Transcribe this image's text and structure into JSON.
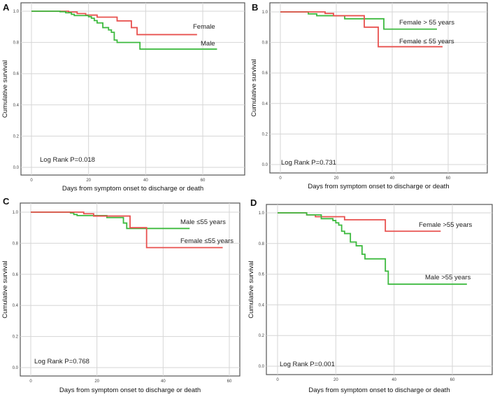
{
  "chart_data": [
    {
      "type": "line",
      "panel": "A",
      "xlabel": "Days from symptom onset to discharge or death",
      "ylabel": "Cumulative survival",
      "xlim": [
        0,
        70
      ],
      "ylim": [
        0,
        1.0
      ],
      "xticks": [
        "0",
        "20",
        "40",
        "60"
      ],
      "yticks": [
        "0.0",
        "0.2",
        "0.4",
        "0.6",
        "0.8",
        "1.0"
      ],
      "grid": true,
      "annotation": "Log Rank P=0.018",
      "series": [
        {
          "name": "Female",
          "color": "#e8514f",
          "steps": [
            [
              0,
              1
            ],
            [
              13,
              0.995
            ],
            [
              16,
              0.985
            ],
            [
              19,
              0.975
            ],
            [
              23,
              0.962
            ],
            [
              30,
              0.938
            ],
            [
              35,
              0.895
            ],
            [
              37,
              0.85
            ]
          ],
          "end": 58
        },
        {
          "name": "Male",
          "color": "#3dba3f",
          "steps": [
            [
              0,
              1
            ],
            [
              10,
              0.997
            ],
            [
              12,
              0.99
            ],
            [
              14,
              0.98
            ],
            [
              15,
              0.972
            ],
            [
              20,
              0.965
            ],
            [
              21,
              0.955
            ],
            [
              22,
              0.94
            ],
            [
              23,
              0.925
            ],
            [
              25,
              0.895
            ],
            [
              27,
              0.88
            ],
            [
              28,
              0.865
            ],
            [
              29,
              0.815
            ],
            [
              30,
              0.8
            ],
            [
              38,
              0.757
            ]
          ],
          "end": 65
        }
      ]
    },
    {
      "type": "line",
      "panel": "B",
      "xlabel": "Days from symptom onset to discharge or death",
      "ylabel": "Cumulative survival",
      "xlim": [
        0,
        70
      ],
      "ylim": [
        0,
        1.0
      ],
      "xticks": [
        "0",
        "20",
        "40",
        "60"
      ],
      "yticks": [
        "0.0",
        "0.2",
        "0.4",
        "0.6",
        "0.8",
        "1.0"
      ],
      "grid": true,
      "annotation": "Log Rank P=0.731",
      "series": [
        {
          "name": "Female > 55 years",
          "color": "#3dba3f",
          "steps": [
            [
              0,
              1
            ],
            [
              10,
              0.987
            ],
            [
              13,
              0.975
            ],
            [
              23,
              0.955
            ],
            [
              37,
              0.887
            ]
          ],
          "end": 56
        },
        {
          "name": "Female ≤ 55 years",
          "color": "#e8514f",
          "steps": [
            [
              0,
              1
            ],
            [
              16,
              0.99
            ],
            [
              19,
              0.975
            ],
            [
              30,
              0.9
            ],
            [
              35,
              0.772
            ]
          ],
          "end": 58
        }
      ]
    },
    {
      "type": "line",
      "panel": "C",
      "xlabel": "Days from symptom onset to discharge or death",
      "ylabel": "Cumulative survival",
      "xlim": [
        0,
        70
      ],
      "ylim": [
        0,
        1.0
      ],
      "xticks": [
        "0",
        "20",
        "40",
        "60"
      ],
      "yticks": [
        "0.0",
        "0.2",
        "0.4",
        "0.6",
        "0.8",
        "1.0"
      ],
      "grid": true,
      "annotation": "Log Rank P=0.768",
      "series": [
        {
          "name": "Male ≤55 years",
          "color": "#3dba3f",
          "steps": [
            [
              0,
              1
            ],
            [
              12,
              0.995
            ],
            [
              13,
              0.985
            ],
            [
              14,
              0.978
            ],
            [
              23,
              0.965
            ],
            [
              28,
              0.93
            ],
            [
              29,
              0.895
            ]
          ],
          "end": 48
        },
        {
          "name": "Female ≤55 years",
          "color": "#e8514f",
          "steps": [
            [
              0,
              1
            ],
            [
              16,
              0.99
            ],
            [
              19,
              0.975
            ],
            [
              30,
              0.9
            ],
            [
              35,
              0.772
            ]
          ],
          "end": 58
        }
      ]
    },
    {
      "type": "line",
      "panel": "D",
      "xlabel": "Days from symptom onset to discharge or death",
      "ylabel": "Cumulative survival",
      "xlim": [
        0,
        70
      ],
      "ylim": [
        0,
        1.0
      ],
      "xticks": [
        "0",
        "20",
        "40",
        "60"
      ],
      "yticks": [
        "0.0",
        "0.2",
        "0.4",
        "0.6",
        "0.8",
        "1.0"
      ],
      "grid": true,
      "annotation": "Log Rank P=0.001",
      "series": [
        {
          "name": "Female >55 years",
          "color": "#e8514f",
          "steps": [
            [
              0,
              1
            ],
            [
              10,
              0.987
            ],
            [
              13,
              0.975
            ],
            [
              23,
              0.955
            ],
            [
              37,
              0.88
            ]
          ],
          "end": 56
        },
        {
          "name": "Male >55 years",
          "color": "#3dba3f",
          "steps": [
            [
              0,
              1
            ],
            [
              10,
              0.987
            ],
            [
              15,
              0.962
            ],
            [
              19,
              0.95
            ],
            [
              20,
              0.935
            ],
            [
              21,
              0.92
            ],
            [
              22,
              0.88
            ],
            [
              23,
              0.865
            ],
            [
              25,
              0.81
            ],
            [
              27,
              0.785
            ],
            [
              29,
              0.73
            ],
            [
              30,
              0.7
            ],
            [
              37,
              0.62
            ],
            [
              38,
              0.535
            ]
          ],
          "end": 65
        }
      ]
    }
  ]
}
